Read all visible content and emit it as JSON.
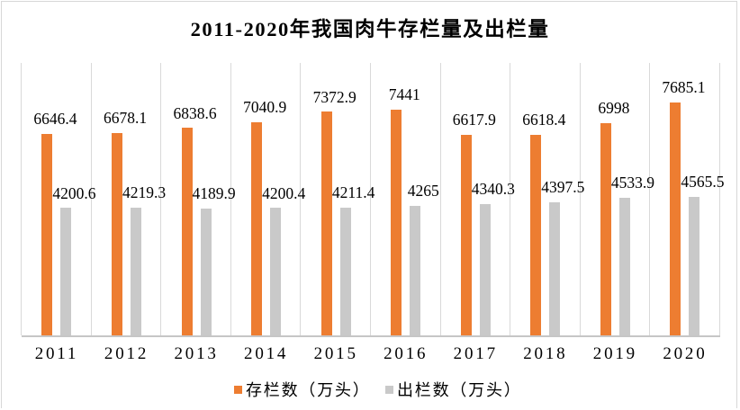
{
  "chart_data": {
    "type": "bar",
    "title": "2011-2020年我国肉牛存栏量及出栏量",
    "categories": [
      "2011",
      "2012",
      "2013",
      "2014",
      "2015",
      "2016",
      "2017",
      "2018",
      "2019",
      "2020"
    ],
    "series": [
      {
        "name": "存栏数（万头）",
        "color": "#ED7D31",
        "values": [
          6646.4,
          6678.1,
          6838.6,
          7040.9,
          7372.9,
          7441,
          6617.9,
          6618.4,
          6998,
          7685.1
        ],
        "data_labels": [
          "6646.4",
          "6678.1",
          "6838.6",
          "7040.9",
          "7372.9",
          "7441",
          "6617.9",
          "6618.4",
          "6998",
          "7685.1"
        ]
      },
      {
        "name": "出栏数（万头）",
        "color": "#C9C9C9",
        "values": [
          4200.6,
          4219.3,
          4189.9,
          4200.4,
          4211.4,
          4265,
          4340.3,
          4397.5,
          4533.9,
          4565.5
        ],
        "data_labels": [
          "4200.6",
          "4219.3",
          "4189.9",
          "4200.4",
          "4211.4",
          "4265",
          "4340.3",
          "4397.5",
          "4533.9",
          "4565.5"
        ]
      }
    ],
    "ylim": [
      0,
      9000
    ],
    "xlabel": "",
    "ylabel": "",
    "legend_position": "bottom",
    "gridlines": "vertical",
    "grid_color": "#D9D9D9",
    "axis_line_color": "#C6C6C6",
    "frame_border_color": "#D7D7D7",
    "text_color": "#000000",
    "background_color": "#FFFFFF"
  }
}
